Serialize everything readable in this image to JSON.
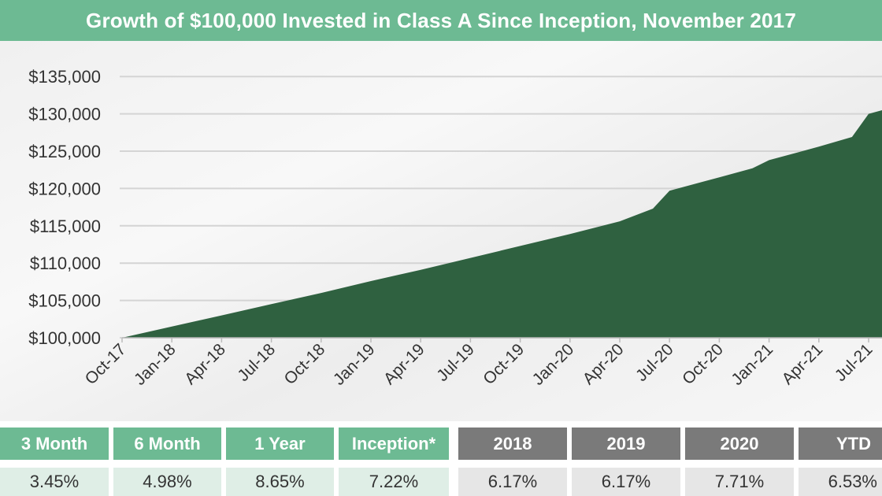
{
  "title": "Growth of $100,000 Invested in Class A Since Inception, November 2017",
  "colors": {
    "title_bar": "#6dba93",
    "area_fill": "#2f6140",
    "header_green": "#6dba93",
    "header_gray": "#7a7a7a",
    "value_green": "#dfeee6",
    "value_gray": "#e6e6e6",
    "gridline": "#d4d4d4"
  },
  "chart_data": {
    "type": "area",
    "title": "Growth of $100,000 Invested in Class A Since Inception, November 2017",
    "xlabel": "",
    "ylabel": "",
    "ylim": [
      100000,
      135000
    ],
    "grid": true,
    "y_ticks": [
      "$100,000",
      "$105,000",
      "$110,000",
      "$115,000",
      "$120,000",
      "$125,000",
      "$130,000",
      "$135,000"
    ],
    "x_ticks": [
      "Oct-17",
      "Jan-18",
      "Apr-18",
      "Jul-18",
      "Oct-18",
      "Jan-19",
      "Apr-19",
      "Jul-19",
      "Oct-19",
      "Jan-20",
      "Apr-20",
      "Jul-20",
      "Oct-20",
      "Jan-21",
      "Apr-21",
      "Jul-21"
    ],
    "series": [
      {
        "x": [
          "Oct-17",
          "Jan-18",
          "Apr-18",
          "Jul-18",
          "Oct-18",
          "Jan-19",
          "Apr-19",
          "Jul-19",
          "Oct-19",
          "Jan-20",
          "Apr-20",
          "Jun-20",
          "Jul-20",
          "Oct-20",
          "Dec-20",
          "Jan-21",
          "Apr-21",
          "Jun-21",
          "Jul-21",
          "Aug-21"
        ],
        "values": [
          100000,
          101500,
          103000,
          104500,
          106000,
          107600,
          109100,
          110700,
          112300,
          113900,
          115600,
          117300,
          119700,
          121500,
          122700,
          123800,
          125600,
          126900,
          130000,
          130600
        ]
      }
    ]
  },
  "performance": {
    "green": [
      {
        "label": "3 Month",
        "value": "3.45%"
      },
      {
        "label": "6 Month",
        "value": "4.98%"
      },
      {
        "label": "1 Year",
        "value": "8.65%"
      },
      {
        "label": "Inception*",
        "value": "7.22%"
      }
    ],
    "gray": [
      {
        "label": "2018",
        "value": "6.17%"
      },
      {
        "label": "2019",
        "value": "6.17%"
      },
      {
        "label": "2020",
        "value": "7.71%"
      },
      {
        "label": "YTD",
        "value": "6.53%"
      }
    ]
  }
}
